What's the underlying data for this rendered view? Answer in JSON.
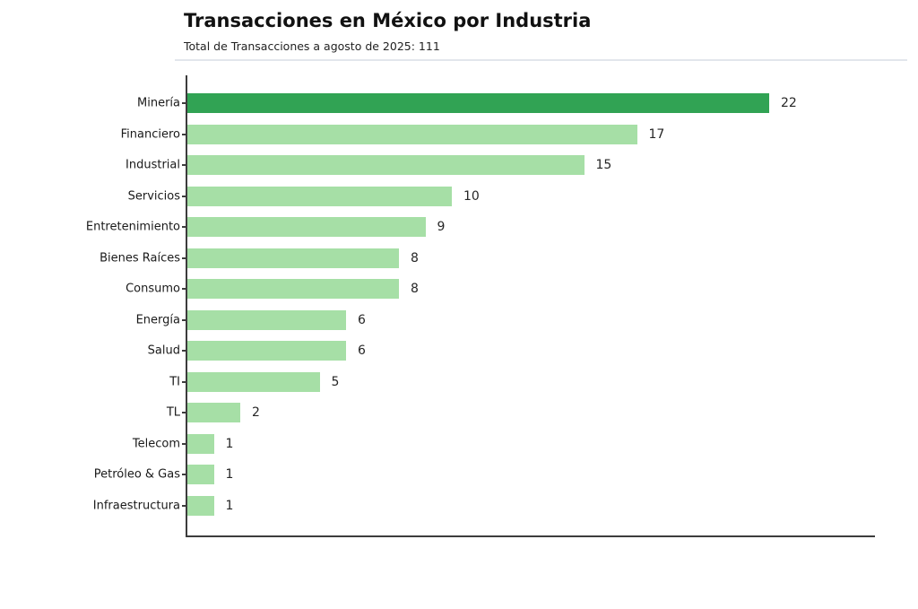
{
  "chart_data": {
    "type": "bar",
    "orientation": "horizontal",
    "title": "Transacciones en México por Industria",
    "subtitle": "Total de Transacciones a agosto de 2025: 111",
    "categories": [
      "Minería",
      "Financiero",
      "Industrial",
      "Servicios",
      "Entretenimiento",
      "Bienes Raíces",
      "Consumo",
      "Energía",
      "Salud",
      "TI",
      "TL",
      "Telecom",
      "Petróleo & Gas",
      "Infraestructura"
    ],
    "values": [
      22,
      17,
      15,
      10,
      9,
      8,
      8,
      6,
      6,
      5,
      2,
      1,
      1,
      1
    ],
    "total_transactions": 111,
    "xlim": [
      0,
      26
    ],
    "grid": false,
    "legend": false,
    "value_labels_shown": true,
    "highlight_index": 0,
    "colors": {
      "bar_highlight": "#31a354",
      "bar_default": "#a6dfa6",
      "axis_spine": "#3c3c3c",
      "header_separator": "#e2e6ec",
      "text": "#1a1a1a"
    }
  }
}
